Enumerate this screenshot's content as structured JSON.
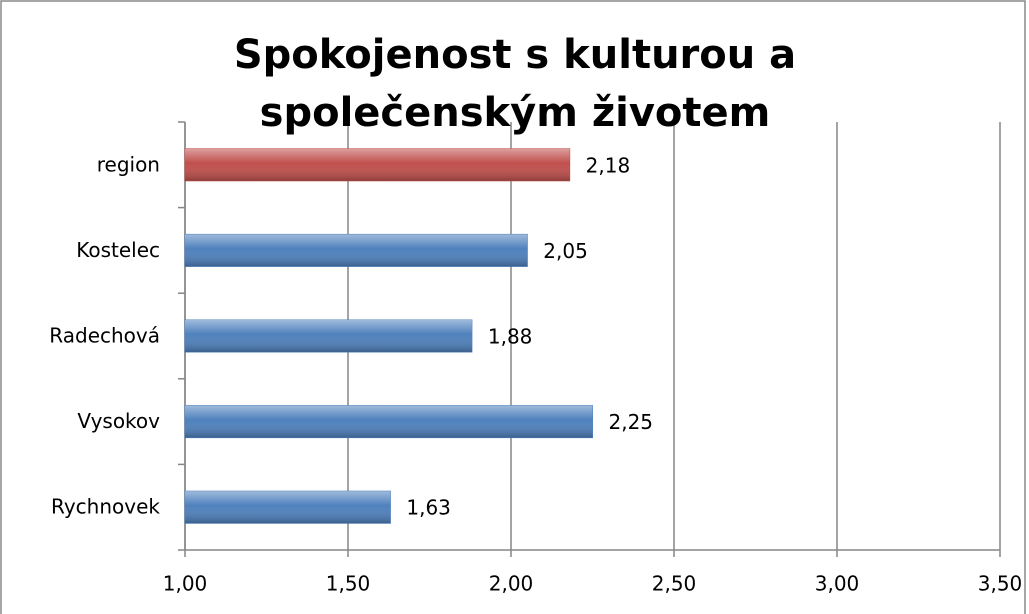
{
  "chart_data": {
    "type": "bar",
    "orientation": "horizontal",
    "title": "Spokojenost s kulturou a společenským životem",
    "categories": [
      "region",
      "Kostelec",
      "Radechová",
      "Vysokov",
      "Rychnovek"
    ],
    "values": [
      2.18,
      2.05,
      1.88,
      2.25,
      1.63
    ],
    "value_labels": [
      "2,18",
      "2,05",
      "1,88",
      "2,25",
      "1,63"
    ],
    "colors": [
      "#c0504d",
      "#4f81bd",
      "#4f81bd",
      "#4f81bd",
      "#4f81bd"
    ],
    "xlim": [
      1,
      3.5
    ],
    "xticks": [
      {
        "value": 1,
        "label": "1,00"
      },
      {
        "value": 1.5,
        "label": "1,50"
      },
      {
        "value": 2,
        "label": "2,00"
      },
      {
        "value": 2.5,
        "label": "2,50"
      },
      {
        "value": 3,
        "label": "3,00"
      },
      {
        "value": 3.5,
        "label": "3,50"
      }
    ],
    "grid": true
  }
}
